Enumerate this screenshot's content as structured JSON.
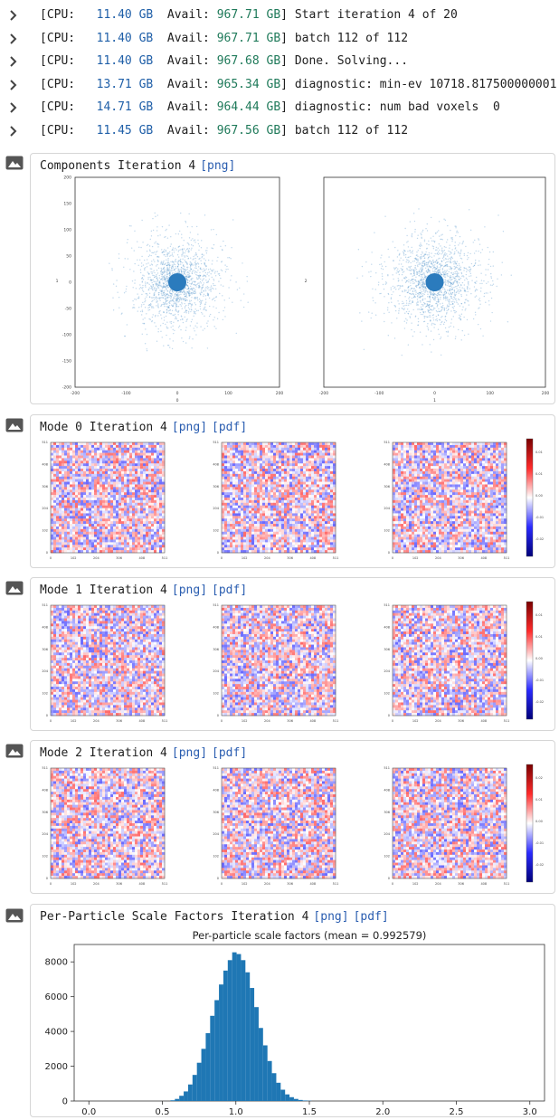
{
  "log": [
    {
      "cpu": "11.40 GB",
      "avail": "967.71 GB",
      "msg": "Start iteration 4 of 20"
    },
    {
      "cpu": "11.40 GB",
      "avail": "967.71 GB",
      "msg": "batch 112 of 112"
    },
    {
      "cpu": "11.40 GB",
      "avail": "967.68 GB",
      "msg": "Done. Solving..."
    },
    {
      "cpu": "13.71 GB",
      "avail": "965.34 GB",
      "msg": "diagnostic: min-ev 10718.817500000001"
    },
    {
      "cpu": "14.71 GB",
      "avail": "964.44 GB",
      "msg": "diagnostic: num bad voxels  0"
    },
    {
      "cpu": "11.45 GB",
      "avail": "967.56 GB",
      "msg": "batch 112 of 112"
    }
  ],
  "log_labels": {
    "cpu_prefix": "[CPU:",
    "avail_prefix": "Avail:",
    "close": "]"
  },
  "cards": {
    "components": {
      "title": "Components Iteration 4",
      "links": [
        "[png]"
      ]
    },
    "mode0": {
      "title": "Mode 0 Iteration 4",
      "links": [
        "[png]",
        "[pdf]"
      ]
    },
    "mode1": {
      "title": "Mode 1 Iteration 4",
      "links": [
        "[png]",
        "[pdf]"
      ]
    },
    "mode2": {
      "title": "Mode 2 Iteration 4",
      "links": [
        "[png]",
        "[pdf]"
      ]
    },
    "scale": {
      "title": "Per-Particle Scale Factors Iteration 4",
      "links": [
        "[png]",
        "[pdf]"
      ]
    }
  },
  "colors": {
    "accent": "#2a5db0",
    "number": "#1f5fa8",
    "avail_number": "#1f7a5a",
    "hist_bar": "#1f77b4",
    "scatter": "#4a90c8"
  },
  "icons": {
    "chevron": "chevron-right-icon",
    "image": "image-icon"
  },
  "chart_data": [
    {
      "type": "scatter",
      "title": "",
      "panels": [
        {
          "xlabel": "0",
          "ylabel": "1",
          "xticks": [
            "-200",
            "-100",
            "0",
            "100",
            "200"
          ],
          "yticks": [
            "200",
            "150",
            "100",
            "50",
            "0",
            "-50",
            "-100",
            "-150",
            "-200"
          ]
        },
        {
          "xlabel": "1",
          "ylabel": "2",
          "xticks": [
            "-200",
            "-100",
            "0",
            "100",
            "200"
          ],
          "yticks": []
        }
      ],
      "xlim": [
        -200,
        200
      ],
      "ylim": [
        -200,
        200
      ],
      "note": "dense cloud of points centered at origin"
    },
    {
      "type": "heatmap",
      "title": "",
      "panel_ticks": [
        "0",
        "102",
        "204",
        "306",
        "408",
        "511"
      ],
      "colorbar": {
        "mode0": [
          "0.01",
          "0.01",
          "0.00",
          "-0.01",
          "-0.02"
        ],
        "mode1": [
          "0.01",
          "0.01",
          "0.00",
          "-0.01",
          "-0.02"
        ],
        "mode2": [
          "0.02",
          "0.01",
          "0.00",
          "-0.01",
          "-0.02"
        ]
      }
    },
    {
      "type": "bar",
      "title": "Per-particle scale factors (mean = 0.992579)",
      "xlabel": "",
      "ylabel": "",
      "xlim": [
        -0.1,
        3.1
      ],
      "ylim": [
        0,
        9000
      ],
      "xticks": [
        "0.0",
        "0.5",
        "1.0",
        "1.5",
        "2.0",
        "2.5",
        "3.0"
      ],
      "yticks": [
        "0",
        "2000",
        "4000",
        "6000",
        "8000"
      ],
      "bin_width": 0.03,
      "bins": [
        {
          "x": 0.57,
          "y": 40
        },
        {
          "x": 0.6,
          "y": 120
        },
        {
          "x": 0.63,
          "y": 300
        },
        {
          "x": 0.66,
          "y": 550
        },
        {
          "x": 0.69,
          "y": 950
        },
        {
          "x": 0.72,
          "y": 1500
        },
        {
          "x": 0.75,
          "y": 2200
        },
        {
          "x": 0.78,
          "y": 3000
        },
        {
          "x": 0.81,
          "y": 3900
        },
        {
          "x": 0.84,
          "y": 4900
        },
        {
          "x": 0.87,
          "y": 5800
        },
        {
          "x": 0.9,
          "y": 6700
        },
        {
          "x": 0.93,
          "y": 7500
        },
        {
          "x": 0.96,
          "y": 8100
        },
        {
          "x": 0.99,
          "y": 8550
        },
        {
          "x": 1.02,
          "y": 8450
        },
        {
          "x": 1.05,
          "y": 8100
        },
        {
          "x": 1.08,
          "y": 7400
        },
        {
          "x": 1.11,
          "y": 6500
        },
        {
          "x": 1.14,
          "y": 5400
        },
        {
          "x": 1.17,
          "y": 4200
        },
        {
          "x": 1.2,
          "y": 3200
        },
        {
          "x": 1.23,
          "y": 2300
        },
        {
          "x": 1.26,
          "y": 1600
        },
        {
          "x": 1.29,
          "y": 1050
        },
        {
          "x": 1.32,
          "y": 650
        },
        {
          "x": 1.35,
          "y": 380
        },
        {
          "x": 1.38,
          "y": 220
        },
        {
          "x": 1.41,
          "y": 120
        },
        {
          "x": 1.44,
          "y": 60
        },
        {
          "x": 1.47,
          "y": 30
        },
        {
          "x": 1.5,
          "y": 15
        }
      ]
    }
  ]
}
